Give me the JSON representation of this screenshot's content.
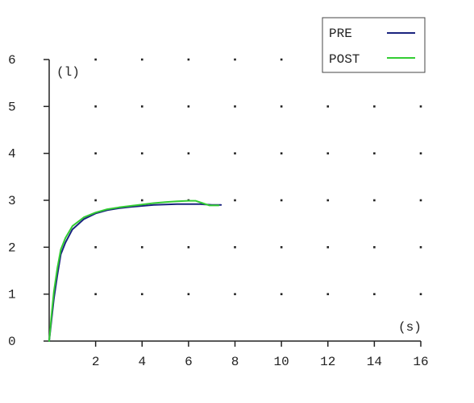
{
  "chart_data": {
    "type": "line",
    "x_unit_label": "(s)",
    "y_unit_label": "(l)",
    "xlim": [
      0,
      16
    ],
    "ylim": [
      0,
      6
    ],
    "x_ticks": [
      2,
      4,
      6,
      8,
      10,
      12,
      14,
      16
    ],
    "y_ticks": [
      0,
      1,
      2,
      3,
      4,
      5,
      6
    ],
    "grid": "dots",
    "legend_position": "top-right",
    "series": [
      {
        "name": "PRE",
        "color": "#1a237e",
        "points": [
          [
            0.0,
            0.0
          ],
          [
            0.1,
            0.45
          ],
          [
            0.2,
            0.9
          ],
          [
            0.35,
            1.4
          ],
          [
            0.5,
            1.85
          ],
          [
            0.7,
            2.1
          ],
          [
            1.0,
            2.38
          ],
          [
            1.5,
            2.6
          ],
          [
            2.0,
            2.72
          ],
          [
            2.5,
            2.79
          ],
          [
            3.0,
            2.83
          ],
          [
            3.5,
            2.86
          ],
          [
            4.0,
            2.88
          ],
          [
            4.5,
            2.9
          ],
          [
            5.0,
            2.91
          ],
          [
            5.5,
            2.92
          ],
          [
            6.0,
            2.92
          ],
          [
            6.5,
            2.92
          ],
          [
            7.0,
            2.9
          ],
          [
            7.4,
            2.9
          ]
        ]
      },
      {
        "name": "POST",
        "color": "#33cc33",
        "points": [
          [
            0.0,
            0.0
          ],
          [
            0.1,
            0.55
          ],
          [
            0.2,
            1.05
          ],
          [
            0.35,
            1.55
          ],
          [
            0.5,
            1.95
          ],
          [
            0.7,
            2.2
          ],
          [
            1.0,
            2.45
          ],
          [
            1.5,
            2.64
          ],
          [
            2.0,
            2.74
          ],
          [
            2.5,
            2.81
          ],
          [
            3.0,
            2.85
          ],
          [
            3.5,
            2.88
          ],
          [
            4.0,
            2.91
          ],
          [
            4.5,
            2.94
          ],
          [
            5.0,
            2.96
          ],
          [
            5.5,
            2.98
          ],
          [
            6.0,
            2.99
          ],
          [
            6.3,
            2.99
          ],
          [
            6.6,
            2.94
          ],
          [
            6.9,
            2.89
          ],
          [
            7.3,
            2.89
          ]
        ]
      }
    ]
  }
}
